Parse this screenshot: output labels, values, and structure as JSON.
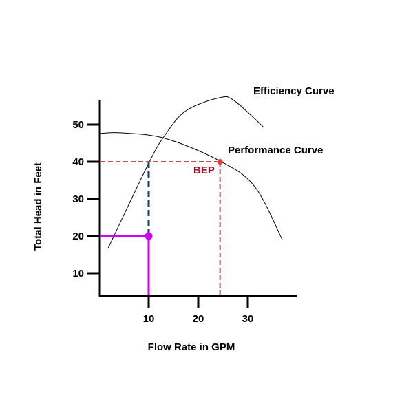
{
  "chart_data": {
    "type": "line",
    "title": "",
    "xlabel": "Flow Rate in GPM",
    "ylabel": "Total Head in Feet",
    "xlim": [
      0,
      40
    ],
    "ylim": [
      0,
      60
    ],
    "xticks": [
      "10",
      "20",
      "30"
    ],
    "xtick_values": [
      10,
      20,
      30
    ],
    "yticks": [
      "10",
      "20",
      "30",
      "40",
      "50"
    ],
    "ytick_values": [
      10,
      20,
      30,
      40,
      50
    ],
    "grid": false,
    "series": [
      {
        "name": "Performance Curve",
        "color": "#000000",
        "x": [
          0.1,
          4.3,
          13.3,
          24.4,
          31.4,
          37.0
        ],
        "y": [
          47.6,
          47.8,
          46.3,
          40.2,
          33.3,
          18.9
        ]
      },
      {
        "name": "Efficiency Curve",
        "color": "#000000",
        "x": [
          1.8,
          10.0,
          13.3,
          17.5,
          24.2,
          27.2,
          33.2
        ],
        "y": [
          16.7,
          39.6,
          47.2,
          53.7,
          57.2,
          56.5,
          49.3
        ]
      }
    ],
    "annotations": [
      {
        "text": "BEP",
        "x": 24.4,
        "y": 40,
        "color": "#a01020",
        "point_color": "#e03a3a",
        "line_color": "#c0504d"
      },
      {
        "text": "",
        "x": 10,
        "y": 20,
        "color": "#cc00ff",
        "connector_color": "#1f3b63"
      }
    ],
    "labels": {
      "efficiency": "Efficiency Curve",
      "performance": "Performance Curve",
      "bep": "BEP"
    }
  }
}
